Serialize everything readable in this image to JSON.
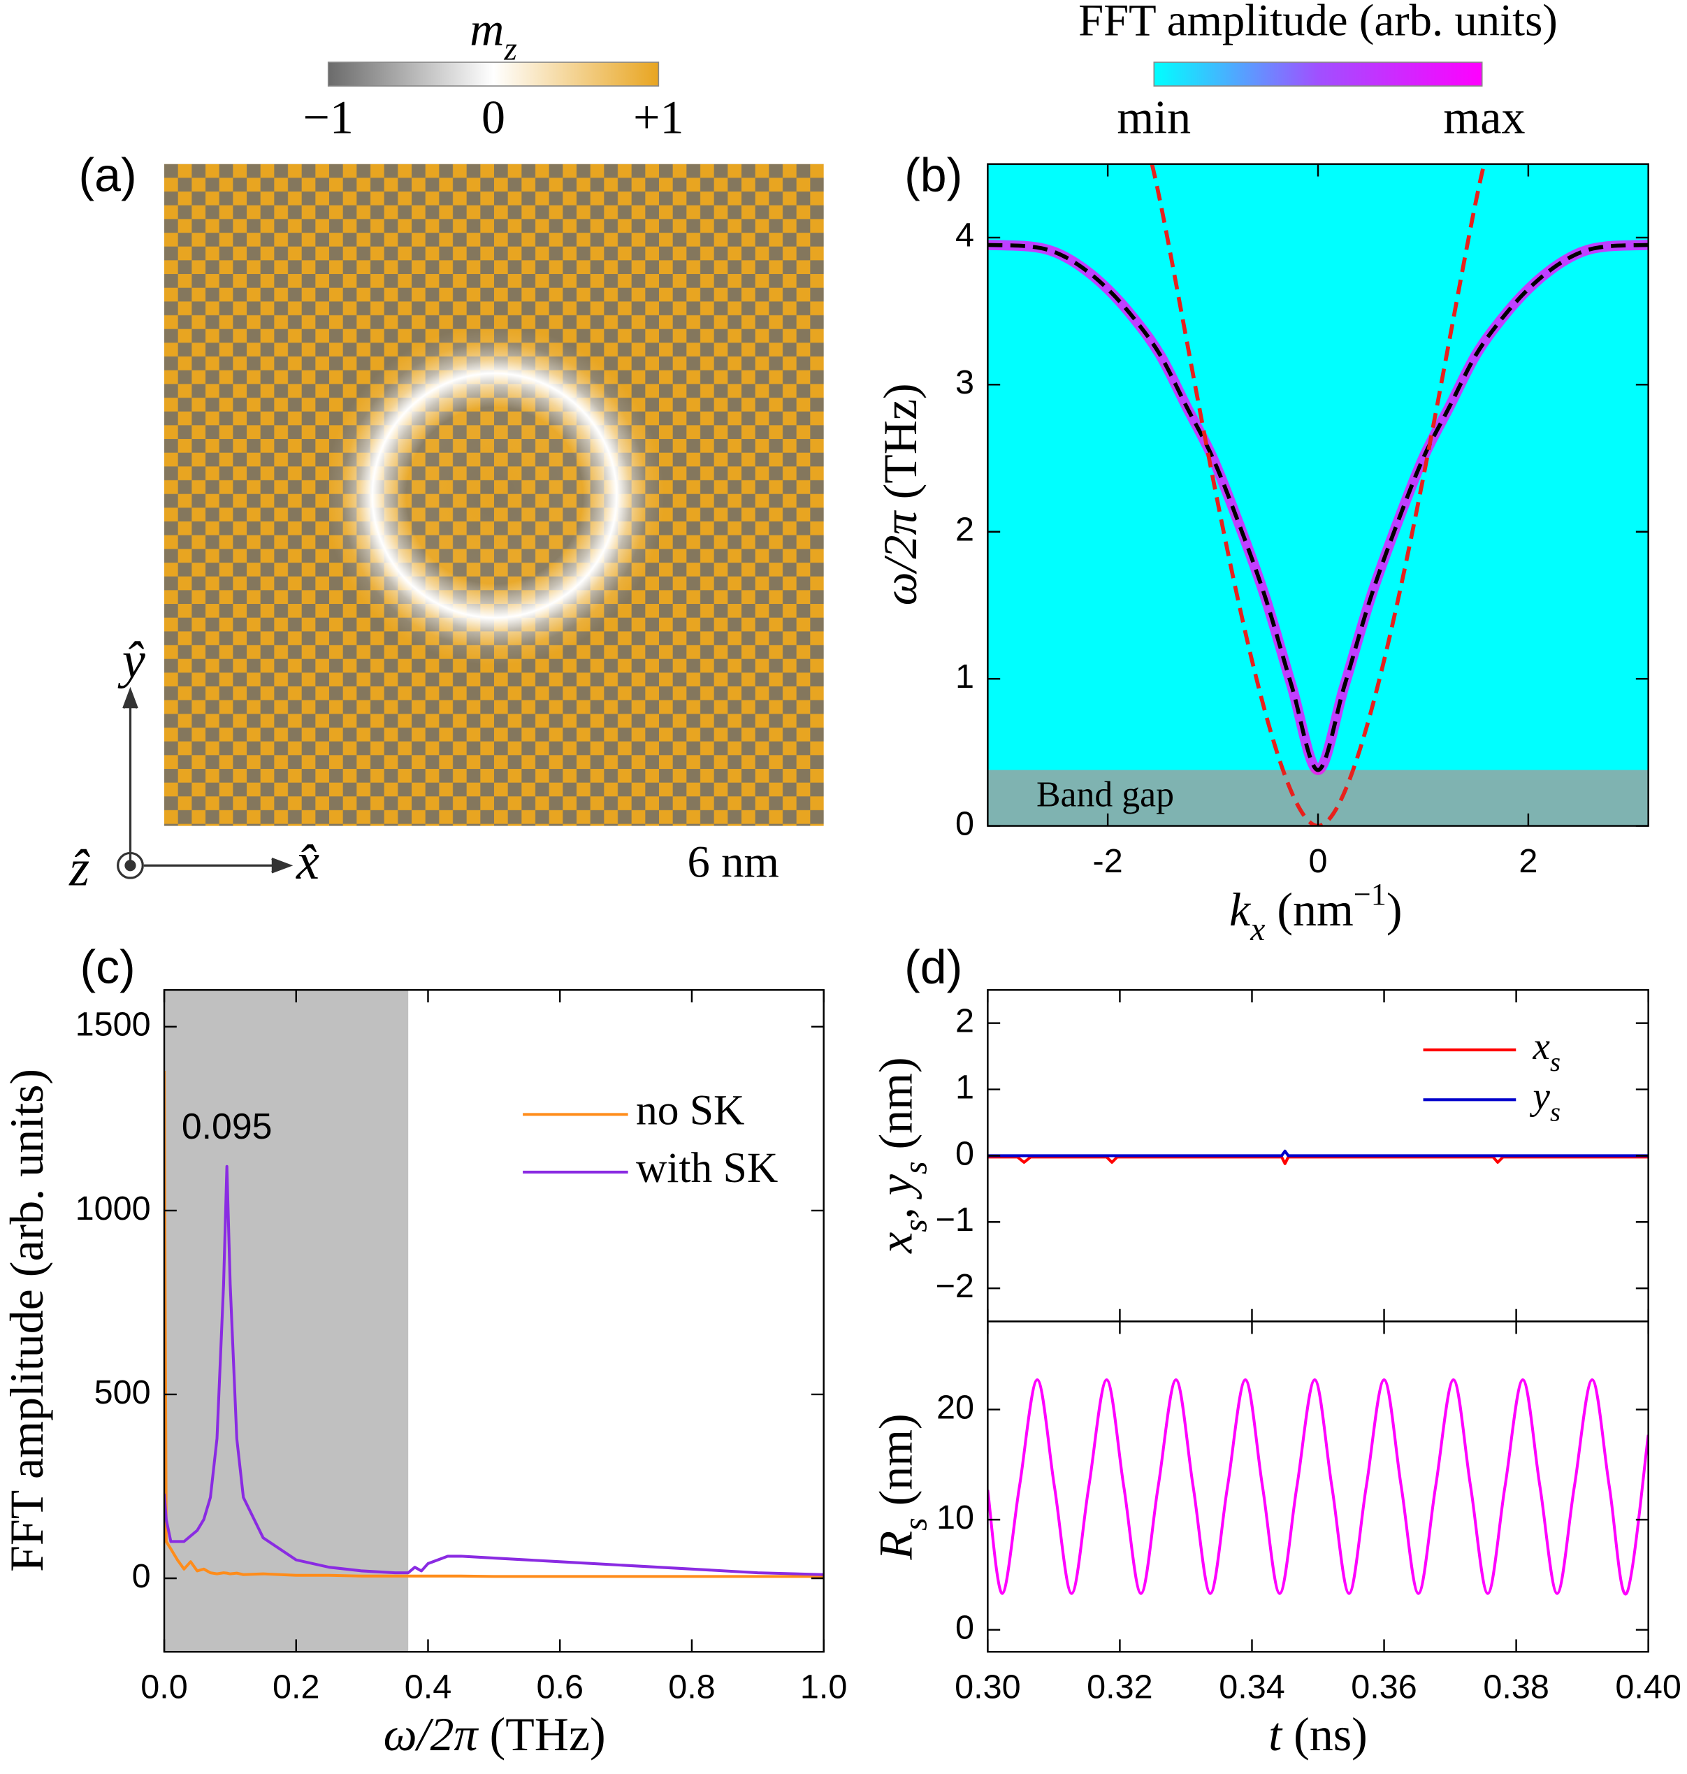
{
  "chart_data": [
    {
      "type": "heatmap",
      "panel": "(a)",
      "colorbar": {
        "label": [
          "m",
          "z"
        ],
        "lim": [
          -1,
          1
        ],
        "ticks": [
          {
            "value": -1,
            "label": "−1"
          },
          0,
          {
            "value": 1,
            "label": "+1"
          }
        ],
        "colors": [
          "#6b6b6b",
          "#ffffff",
          "#e8a521"
        ]
      },
      "scale_bar": "6 nm",
      "axis_labels": [
        "x̂",
        "ŷ",
        "ẑ"
      ]
    },
    {
      "type": "line",
      "panel": "(b)",
      "colorbar": {
        "label": "FFT amplitude (arb. units)",
        "tick_labels": [
          "min",
          "max"
        ],
        "colors": [
          "#00ffff",
          "#a050ff",
          "#ff00ff"
        ]
      },
      "background": "#00ffff",
      "xlim": [
        -3.1416,
        3.1416
      ],
      "ylim": [
        0,
        4.5
      ],
      "xticks": [
        -2,
        0,
        2
      ],
      "yticks": [
        0,
        1,
        2,
        3,
        4
      ],
      "xlabel": [
        "k",
        "x",
        " (nm",
        "−1",
        ")"
      ],
      "ylabel": [
        "ω/2π",
        " (THz)"
      ],
      "band_gap": {
        "label": "Band gap",
        "values": [
          0,
          0.38
        ],
        "color": "#7fb3b1"
      },
      "series": [
        {
          "color": "#000000",
          "halo_color": "#ff00ff",
          "style": "dashed",
          "x": [
            -3.1416,
            -2.75,
            -2.5,
            -2.25,
            -2,
            -1.75,
            -1.5,
            -1.25,
            -1,
            -0.75,
            -0.5,
            -0.25,
            0,
            0.25,
            0.5,
            0.75,
            1,
            1.25,
            1.5,
            1.75,
            2,
            2.25,
            2.5,
            2.75,
            3.1416
          ],
          "values": [
            3.95,
            3.94,
            3.9,
            3.8,
            3.65,
            3.45,
            3.2,
            2.85,
            2.5,
            2.05,
            1.55,
            0.95,
            0.38,
            0.95,
            1.55,
            2.05,
            2.5,
            2.85,
            3.2,
            3.45,
            3.65,
            3.8,
            3.9,
            3.94,
            3.95
          ]
        },
        {
          "color": "#e8201c",
          "style": "dashed",
          "x": [
            -1.58,
            0,
            1.58
          ],
          "values": [
            4.5,
            0,
            4.5
          ]
        }
      ]
    },
    {
      "type": "line",
      "panel": "(c)",
      "xlim": [
        0,
        1
      ],
      "ylim": [
        -200,
        1600
      ],
      "xticks": [
        {
          "value": 0,
          "label": "0.0"
        },
        0.2,
        0.4,
        0.6,
        0.8,
        {
          "value": 1,
          "label": "1.0"
        }
      ],
      "yticks": [
        0,
        500,
        1000,
        1500
      ],
      "xlabel": [
        "ω/2π",
        " (THz)"
      ],
      "ylabel": "FFT amplitude (arb. units)",
      "shaded": {
        "range": [
          0,
          0.37
        ],
        "color": "#c0c0c0"
      },
      "annotation": {
        "text": "0.095",
        "x": 0.095
      },
      "legend": "upper right",
      "series": [
        {
          "name": "no SK",
          "color": "#ff8c1a",
          "x": [
            0,
            0.003,
            0.01,
            0.02,
            0.03,
            0.04,
            0.05,
            0.06,
            0.07,
            0.08,
            0.09,
            0.095,
            0.1,
            0.11,
            0.12,
            0.15,
            0.2,
            0.25,
            0.3,
            0.35,
            0.37,
            0.38,
            0.39,
            0.4,
            0.43,
            0.45,
            0.5,
            0.6,
            0.7,
            0.8,
            0.9,
            1.0
          ],
          "values": [
            1380,
            100,
            80,
            50,
            25,
            45,
            20,
            25,
            15,
            12,
            15,
            14,
            12,
            14,
            10,
            12,
            8,
            8,
            6,
            6,
            6,
            6,
            6,
            6,
            6,
            6,
            5,
            5,
            5,
            5,
            5,
            5
          ]
        },
        {
          "name": "with SK",
          "color": "#8a2be2",
          "x": [
            0,
            0.003,
            0.01,
            0.02,
            0.03,
            0.04,
            0.05,
            0.06,
            0.07,
            0.08,
            0.09,
            0.095,
            0.1,
            0.11,
            0.12,
            0.15,
            0.2,
            0.25,
            0.3,
            0.35,
            0.37,
            0.38,
            0.39,
            0.4,
            0.43,
            0.45,
            0.5,
            0.6,
            0.7,
            0.8,
            0.9,
            1.0
          ],
          "values": [
            230,
            160,
            100,
            100,
            100,
            115,
            130,
            160,
            220,
            380,
            800,
            1120,
            800,
            380,
            220,
            110,
            50,
            30,
            20,
            15,
            15,
            30,
            20,
            40,
            60,
            60,
            55,
            45,
            35,
            25,
            15,
            10
          ]
        }
      ]
    },
    {
      "type": "line",
      "panel": "(d)",
      "xlim": [
        0.3,
        0.4
      ],
      "ylim": [
        -2.5,
        2.5
      ],
      "yticks": [
        {
          "value": -2,
          "label": "−2"
        },
        {
          "value": -1,
          "label": "−1"
        },
        0,
        1,
        2
      ],
      "ylabel": [
        "x",
        "s",
        ", ",
        "y",
        "s",
        " (nm)"
      ],
      "legend": "upper right",
      "series": [
        {
          "name": [
            "x",
            "s"
          ],
          "color": "#ff0000",
          "x": [
            0.3,
            0.3045,
            0.3055,
            0.3065,
            0.318,
            0.3188,
            0.3196,
            0.3445,
            0.345,
            0.3455,
            0.3765,
            0.3772,
            0.378,
            0.4
          ],
          "values": [
            -0.02,
            -0.02,
            -0.1,
            -0.02,
            -0.02,
            -0.1,
            -0.02,
            -0.02,
            -0.12,
            -0.02,
            -0.02,
            -0.1,
            -0.02,
            -0.02
          ]
        },
        {
          "name": [
            "y",
            "s"
          ],
          "color": "#0000cc",
          "x": [
            0.3,
            0.3445,
            0.345,
            0.3455,
            0.4
          ],
          "values": [
            0,
            0,
            0.07,
            0,
            0
          ]
        }
      ]
    },
    {
      "type": "line",
      "xlim": [
        0.3,
        0.4
      ],
      "ylim": [
        -2,
        28
      ],
      "xticks": [
        {
          "value": 0.3,
          "label": "0.30"
        },
        0.32,
        0.34,
        0.36,
        0.38,
        {
          "value": 0.4,
          "label": "0.40"
        }
      ],
      "yticks": [
        0,
        10,
        20
      ],
      "xlabel": [
        "t",
        " (ns)"
      ],
      "ylabel": [
        "R",
        "s",
        " (nm)"
      ],
      "series": [
        {
          "color": "#ff00ff",
          "x": [
            0.3,
            0.3022,
            0.3048,
            0.3075,
            0.3101,
            0.3127,
            0.3153,
            0.318,
            0.3206,
            0.3232,
            0.3258,
            0.3285,
            0.3311,
            0.3337,
            0.3363,
            0.339,
            0.3416,
            0.3442,
            0.3468,
            0.3495,
            0.3521,
            0.3547,
            0.3573,
            0.36,
            0.3626,
            0.3652,
            0.3678,
            0.3705,
            0.3731,
            0.3757,
            0.3783,
            0.381,
            0.3836,
            0.3862,
            0.3888,
            0.3915,
            0.3941,
            0.3967,
            0.4
          ],
          "values": [
            12.7,
            3.3,
            13,
            22.7,
            13,
            3.3,
            13,
            22.7,
            13,
            3.3,
            13,
            22.7,
            13,
            3.3,
            13,
            22.7,
            13,
            3.3,
            13,
            22.7,
            13,
            3.3,
            13,
            22.7,
            13,
            3.3,
            13,
            22.7,
            13,
            3.3,
            13,
            22.7,
            13,
            3.3,
            13,
            22.7,
            13,
            3.3,
            17.7
          ]
        }
      ]
    }
  ]
}
